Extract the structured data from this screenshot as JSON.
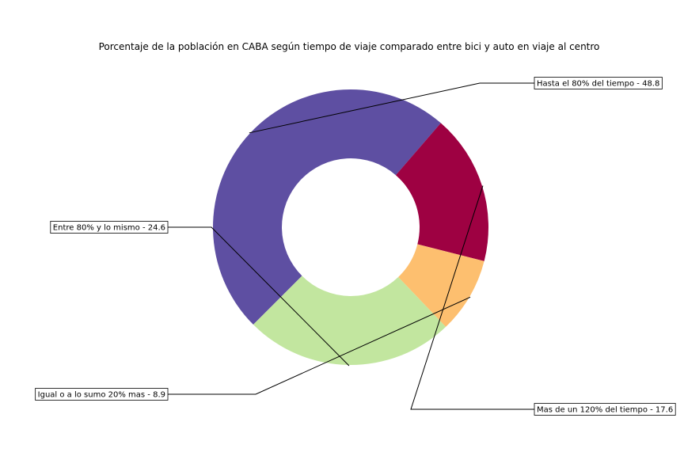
{
  "chart_data": {
    "type": "pie",
    "variant": "donut",
    "title": "Porcentaje de la población en CABA según tiempo de viaje comparado entre bici y auto en viaje al centro",
    "legend": "none",
    "slices": [
      {
        "label": "Hasta el 80% del tiempo - 48.8",
        "category": "Hasta el 80% del tiempo",
        "value": 48.8,
        "color": "#5e4fa2"
      },
      {
        "label": "Mas de un 120% del tiempo - 17.6",
        "category": "Mas de un 120% del tiempo",
        "value": 17.6,
        "color": "#9e0142"
      },
      {
        "label": "Igual o a lo sumo 20% mas - 8.9",
        "category": "Igual o a lo sumo 20% mas",
        "value": 8.9,
        "color": "#fdbf6f"
      },
      {
        "label": "Entre 80% y lo mismo - 24.6",
        "category": "Entre 80% y lo mismo",
        "value": 24.6,
        "color": "#c2e69f"
      }
    ]
  }
}
